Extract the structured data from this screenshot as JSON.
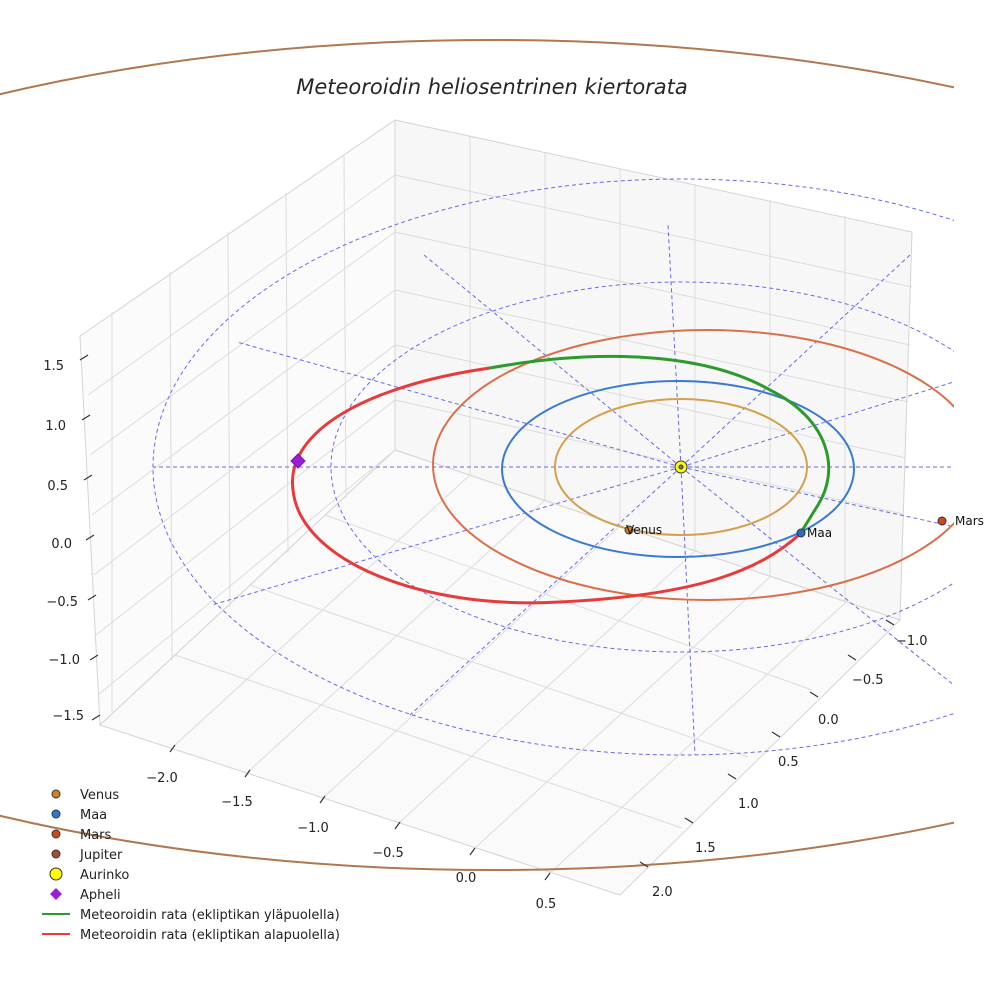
{
  "chart_data": {
    "type": "line3d",
    "title": "Meteoroidin heliosentrinen kiertorata",
    "x_ticks": [
      "−2.0",
      "−1.5",
      "−1.0",
      "−0.5",
      "0.0",
      "0.5"
    ],
    "y_ticks": [
      "−1.0",
      "−0.5",
      "0.0",
      "0.5",
      "1.0",
      "1.5",
      "2.0"
    ],
    "z_ticks": [
      "1.5",
      "1.0",
      "0.5",
      "0.0",
      "−0.5",
      "−1.0",
      "−1.5"
    ],
    "xlim": [
      -2.3,
      0.8
    ],
    "ylim": [
      -1.3,
      2.3
    ],
    "zlim": [
      -1.7,
      1.7
    ],
    "reference_circle_radii_au": [
      1.0,
      1.5,
      2.0,
      2.5
    ],
    "orbits": [
      {
        "name": "Venus",
        "radius_au": 0.72,
        "color": "#d4a04c"
      },
      {
        "name": "Maa",
        "radius_au": 1.0,
        "color": "#3a7ad0"
      },
      {
        "name": "Mars",
        "radius_au": 1.52,
        "color": "#d9704a"
      },
      {
        "name": "Jupiter",
        "radius_au": 5.2,
        "color": "#b07850"
      }
    ],
    "bodies": [
      {
        "name": "Venus",
        "label": "Venus",
        "color": "#d4821e"
      },
      {
        "name": "Maa",
        "label": "Maa",
        "color": "#2a6fbf"
      },
      {
        "name": "Mars",
        "label": "Mars",
        "color": "#d04818"
      },
      {
        "name": "Aurinko",
        "label": "",
        "color": "#ffff00"
      }
    ],
    "meteoroid_track": {
      "perihelion_au": 1.0,
      "aphelion_au": 2.2,
      "above_color": "#2e9a2e",
      "below_color": "#e83a3a"
    },
    "legend": [
      {
        "label": "Venus",
        "marker": "circle",
        "color": "#d4821e"
      },
      {
        "label": "Maa",
        "marker": "circle",
        "color": "#2a7ad0"
      },
      {
        "label": "Mars",
        "marker": "circle",
        "color": "#d04818"
      },
      {
        "label": "Jupiter",
        "marker": "circle",
        "color": "#a0522d"
      },
      {
        "label": "Aurinko",
        "marker": "circle-large",
        "color": "#ffff00"
      },
      {
        "label": "Apheli",
        "marker": "diamond",
        "color": "#9b1ed6"
      },
      {
        "label": "Meteoroidin rata (ekliptikan yläpuolella)",
        "marker": "line",
        "color": "#2e9a2e"
      },
      {
        "label": "Meteoroidin rata (ekliptikan alapuolella)",
        "marker": "line",
        "color": "#e83a3a"
      }
    ]
  }
}
